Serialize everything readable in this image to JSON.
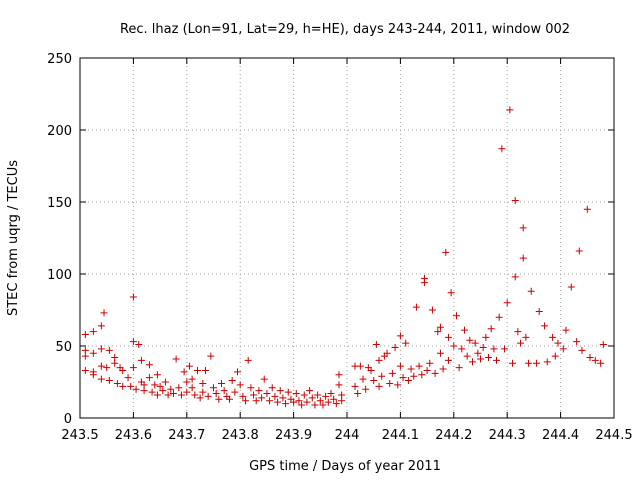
{
  "chart_data": {
    "type": "scatter",
    "title": "Rec. lhaz (Lon=91, Lat=29, h=HE), days 243-244, 2011, window 002",
    "xlabel": "GPS time / Days of year 2011",
    "ylabel": "STEC from uqrg / TECUs",
    "xlim": [
      243.5,
      244.5
    ],
    "ylim": [
      0,
      250
    ],
    "xticks": [
      "243.5",
      "243.6",
      "243.7",
      "243.8",
      "243.9",
      "244",
      "244.1",
      "244.2",
      "244.3",
      "244.4",
      "244.5"
    ],
    "yticks": [
      "0",
      "50",
      "100",
      "150",
      "200",
      "250"
    ],
    "grid": true,
    "marker": "+",
    "color": "#cc0000",
    "points": [
      [
        243.51,
        58
      ],
      [
        243.51,
        47
      ],
      [
        243.51,
        43
      ],
      [
        243.51,
        33
      ],
      [
        243.525,
        60
      ],
      [
        243.525,
        45
      ],
      [
        243.525,
        32
      ],
      [
        243.525,
        30
      ],
      [
        243.54,
        64
      ],
      [
        243.54,
        48
      ],
      [
        243.54,
        36
      ],
      [
        243.54,
        27
      ],
      [
        243.545,
        73
      ],
      [
        243.55,
        35
      ],
      [
        243.555,
        47
      ],
      [
        243.555,
        26
      ],
      [
        243.565,
        42
      ],
      [
        243.565,
        38
      ],
      [
        243.57,
        24
      ],
      [
        243.575,
        35
      ],
      [
        243.58,
        33
      ],
      [
        243.58,
        22
      ],
      [
        243.59,
        28
      ],
      [
        243.595,
        22
      ],
      [
        243.6,
        84
      ],
      [
        243.6,
        53
      ],
      [
        243.6,
        35
      ],
      [
        243.605,
        20
      ],
      [
        243.61,
        51
      ],
      [
        243.615,
        40
      ],
      [
        243.615,
        25
      ],
      [
        243.62,
        23
      ],
      [
        243.62,
        19
      ],
      [
        243.63,
        37
      ],
      [
        243.63,
        28
      ],
      [
        243.635,
        18
      ],
      [
        243.64,
        23
      ],
      [
        243.645,
        30
      ],
      [
        243.645,
        16
      ],
      [
        243.65,
        22
      ],
      [
        243.655,
        19
      ],
      [
        243.66,
        25
      ],
      [
        243.665,
        16
      ],
      [
        243.67,
        20
      ],
      [
        243.675,
        17
      ],
      [
        243.68,
        41
      ],
      [
        243.685,
        21
      ],
      [
        243.69,
        16
      ],
      [
        243.695,
        32
      ],
      [
        243.7,
        25
      ],
      [
        243.7,
        18
      ],
      [
        243.705,
        36
      ],
      [
        243.71,
        27
      ],
      [
        243.71,
        21
      ],
      [
        243.715,
        16
      ],
      [
        243.72,
        33
      ],
      [
        243.725,
        14
      ],
      [
        243.73,
        24
      ],
      [
        243.73,
        18
      ],
      [
        243.735,
        33
      ],
      [
        243.74,
        15
      ],
      [
        243.745,
        43
      ],
      [
        243.75,
        21
      ],
      [
        243.755,
        17
      ],
      [
        243.76,
        13
      ],
      [
        243.765,
        24
      ],
      [
        243.77,
        19
      ],
      [
        243.775,
        15
      ],
      [
        243.78,
        13
      ],
      [
        243.785,
        26
      ],
      [
        243.79,
        18
      ],
      [
        243.795,
        32
      ],
      [
        243.8,
        23
      ],
      [
        243.805,
        15
      ],
      [
        243.81,
        12
      ],
      [
        243.815,
        40
      ],
      [
        243.82,
        21
      ],
      [
        243.825,
        16
      ],
      [
        243.83,
        12
      ],
      [
        243.835,
        19
      ],
      [
        243.84,
        14
      ],
      [
        243.845,
        27
      ],
      [
        243.85,
        17
      ],
      [
        243.855,
        12
      ],
      [
        243.86,
        21
      ],
      [
        243.865,
        15
      ],
      [
        243.87,
        11
      ],
      [
        243.875,
        19
      ],
      [
        243.88,
        14
      ],
      [
        243.885,
        10
      ],
      [
        243.89,
        18
      ],
      [
        243.895,
        13
      ],
      [
        243.9,
        11
      ],
      [
        243.905,
        17
      ],
      [
        243.91,
        12
      ],
      [
        243.915,
        9
      ],
      [
        243.92,
        16
      ],
      [
        243.925,
        11
      ],
      [
        243.93,
        19
      ],
      [
        243.935,
        14
      ],
      [
        243.94,
        9
      ],
      [
        243.945,
        16
      ],
      [
        243.95,
        12
      ],
      [
        243.955,
        9
      ],
      [
        243.96,
        15
      ],
      [
        243.965,
        11
      ],
      [
        243.97,
        17
      ],
      [
        243.975,
        13
      ],
      [
        243.98,
        10
      ],
      [
        243.985,
        30
      ],
      [
        243.985,
        23
      ],
      [
        243.99,
        16
      ],
      [
        243.99,
        12
      ],
      [
        244.015,
        36
      ],
      [
        244.015,
        22
      ],
      [
        244.02,
        17
      ],
      [
        244.025,
        36
      ],
      [
        244.03,
        27
      ],
      [
        244.035,
        20
      ],
      [
        244.04,
        35
      ],
      [
        244.045,
        33
      ],
      [
        244.05,
        26
      ],
      [
        244.055,
        51
      ],
      [
        244.06,
        40
      ],
      [
        244.06,
        22
      ],
      [
        244.065,
        29
      ],
      [
        244.07,
        43
      ],
      [
        244.075,
        45
      ],
      [
        244.08,
        24
      ],
      [
        244.085,
        31
      ],
      [
        244.09,
        49
      ],
      [
        244.095,
        23
      ],
      [
        244.1,
        57
      ],
      [
        244.1,
        36
      ],
      [
        244.105,
        28
      ],
      [
        244.11,
        52
      ],
      [
        244.115,
        26
      ],
      [
        244.12,
        34
      ],
      [
        244.125,
        29
      ],
      [
        244.13,
        77
      ],
      [
        244.135,
        36
      ],
      [
        244.14,
        30
      ],
      [
        244.145,
        97
      ],
      [
        244.145,
        94
      ],
      [
        244.15,
        33
      ],
      [
        244.155,
        38
      ],
      [
        244.16,
        75
      ],
      [
        244.165,
        31
      ],
      [
        244.17,
        60
      ],
      [
        244.175,
        63
      ],
      [
        244.175,
        45
      ],
      [
        244.18,
        34
      ],
      [
        244.185,
        115
      ],
      [
        244.19,
        56
      ],
      [
        244.19,
        40
      ],
      [
        244.195,
        87
      ],
      [
        244.2,
        50
      ],
      [
        244.205,
        71
      ],
      [
        244.21,
        35
      ],
      [
        244.215,
        48
      ],
      [
        244.22,
        61
      ],
      [
        244.225,
        43
      ],
      [
        244.23,
        54
      ],
      [
        244.235,
        39
      ],
      [
        244.24,
        52
      ],
      [
        244.245,
        45
      ],
      [
        244.25,
        41
      ],
      [
        244.255,
        49
      ],
      [
        244.26,
        56
      ],
      [
        244.265,
        42
      ],
      [
        244.27,
        62
      ],
      [
        244.275,
        48
      ],
      [
        244.28,
        40
      ],
      [
        244.285,
        70
      ],
      [
        244.29,
        187
      ],
      [
        244.295,
        48
      ],
      [
        244.3,
        80
      ],
      [
        244.305,
        214
      ],
      [
        244.31,
        38
      ],
      [
        244.315,
        151
      ],
      [
        244.315,
        98
      ],
      [
        244.32,
        60
      ],
      [
        244.325,
        52
      ],
      [
        244.33,
        111
      ],
      [
        244.33,
        132
      ],
      [
        244.335,
        56
      ],
      [
        244.34,
        38
      ],
      [
        244.345,
        88
      ],
      [
        244.355,
        38
      ],
      [
        244.36,
        74
      ],
      [
        244.37,
        64
      ],
      [
        244.375,
        39
      ],
      [
        244.385,
        56
      ],
      [
        244.39,
        43
      ],
      [
        244.395,
        52
      ],
      [
        244.405,
        48
      ],
      [
        244.41,
        61
      ],
      [
        244.42,
        91
      ],
      [
        244.43,
        53
      ],
      [
        244.435,
        116
      ],
      [
        244.44,
        47
      ],
      [
        244.45,
        145
      ],
      [
        244.455,
        42
      ],
      [
        244.465,
        40
      ],
      [
        244.475,
        38
      ],
      [
        244.48,
        51
      ]
    ]
  }
}
